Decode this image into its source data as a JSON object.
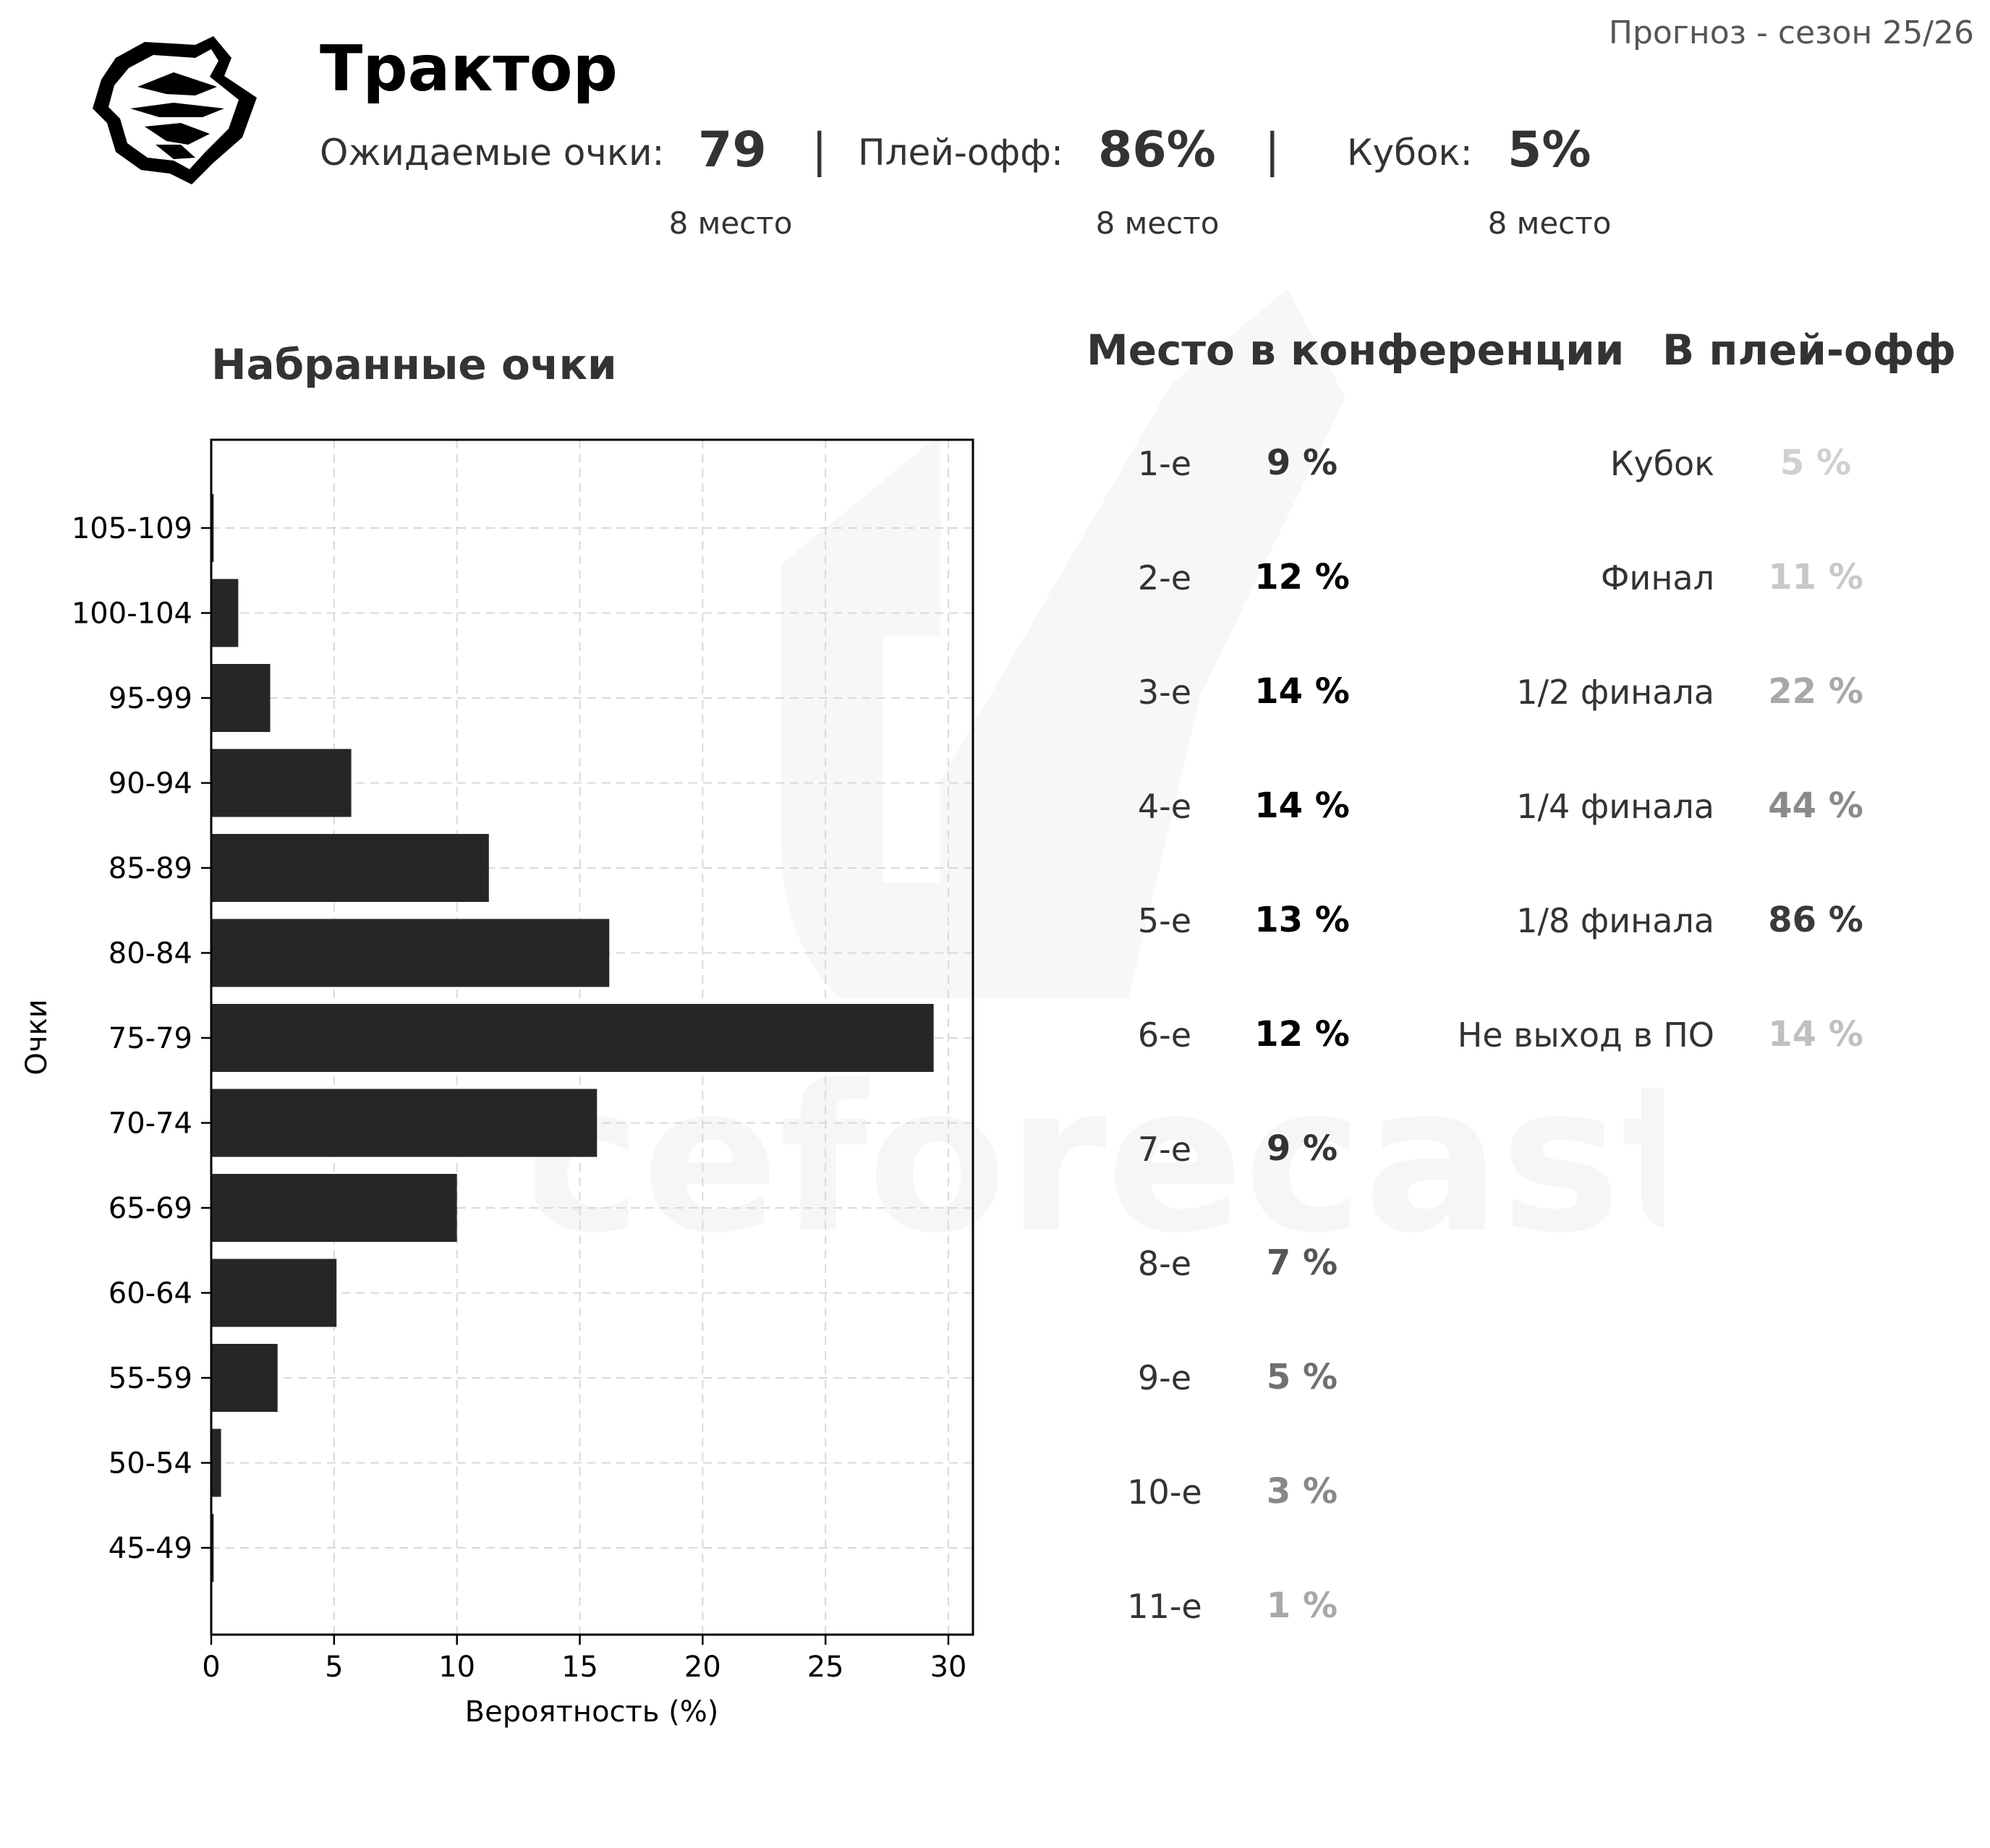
{
  "header": {
    "team_name": "Трактор",
    "season": "Прогноз - сезон 25/26",
    "stats": [
      {
        "label": "Ожидаемые очки:",
        "value": "79",
        "rank": "8 место"
      },
      {
        "label": "Плей-офф:",
        "value": "86%",
        "rank": "8 место"
      },
      {
        "label": "Кубок:",
        "value": "5%",
        "rank": "8 место"
      }
    ],
    "separator": "|",
    "logo_icon": "tiger-head-icon"
  },
  "watermark": {
    "text": "iceforecast"
  },
  "conference": {
    "title": "Место в конференции",
    "rows": [
      {
        "place": "1-е",
        "value": "9 %",
        "pct": 9
      },
      {
        "place": "2-е",
        "value": "12 %",
        "pct": 12
      },
      {
        "place": "3-е",
        "value": "14 %",
        "pct": 14
      },
      {
        "place": "4-е",
        "value": "14 %",
        "pct": 14
      },
      {
        "place": "5-е",
        "value": "13 %",
        "pct": 13
      },
      {
        "place": "6-е",
        "value": "12 %",
        "pct": 12
      },
      {
        "place": "7-е",
        "value": "9 %",
        "pct": 9
      },
      {
        "place": "8-е",
        "value": "7 %",
        "pct": 7
      },
      {
        "place": "9-е",
        "value": "5 %",
        "pct": 5
      },
      {
        "place": "10-е",
        "value": "3 %",
        "pct": 3
      },
      {
        "place": "11-е",
        "value": "1 %",
        "pct": 1
      }
    ]
  },
  "playoff": {
    "title": "В плей-офф",
    "rows": [
      {
        "stage": "Кубок",
        "value": "5 %",
        "pct": 5
      },
      {
        "stage": "Финал",
        "value": "11 %",
        "pct": 11
      },
      {
        "stage": "1/2 финала",
        "value": "22 %",
        "pct": 22
      },
      {
        "stage": "1/4 финала",
        "value": "44 %",
        "pct": 44
      },
      {
        "stage": "1/8 финала",
        "value": "86 %",
        "pct": 86
      },
      {
        "stage": "Не выход в ПО",
        "value": "14 %",
        "pct": 14
      }
    ]
  },
  "chart_data": {
    "type": "bar",
    "orientation": "horizontal",
    "title": "Набранные очки",
    "xlabel": "Вероятность (%)",
    "ylabel": "Очки",
    "categories": [
      "105-109",
      "100-104",
      "95-99",
      "90-94",
      "85-89",
      "80-84",
      "75-79",
      "70-74",
      "65-69",
      "60-64",
      "55-59",
      "50-54",
      "45-49"
    ],
    "values": [
      0.1,
      1.1,
      2.4,
      5.7,
      11.3,
      16.2,
      29.4,
      15.7,
      10.0,
      5.1,
      2.7,
      0.4,
      0.1
    ],
    "xlim": [
      0,
      31
    ],
    "xticks": [
      0,
      5,
      10,
      15,
      20,
      25,
      30
    ],
    "grid": true,
    "bar_color": "#262626"
  }
}
